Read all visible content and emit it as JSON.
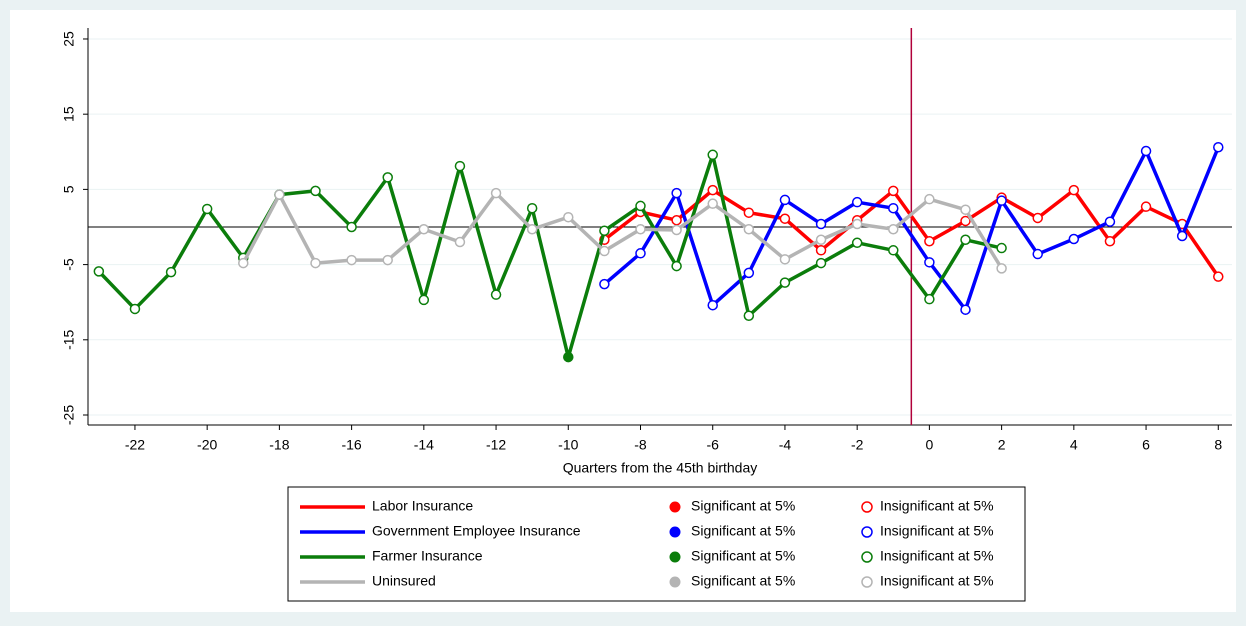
{
  "chart_data": {
    "type": "line",
    "x_label": "Quarters from the 45th birthday",
    "xlim": [
      -23.3,
      8.38
    ],
    "ylim": [
      -26.33,
      26.46
    ],
    "xticks": [
      -22,
      -20,
      -18,
      -16,
      -14,
      -12,
      -10,
      -8,
      -6,
      -4,
      -2,
      0,
      2,
      4,
      6,
      8
    ],
    "yticks": [
      -25,
      -15,
      -5,
      5,
      15,
      25
    ],
    "grid": true,
    "vline": -0.5,
    "hline": 0,
    "vline_color": "#b0003a",
    "legend_position": "bottom",
    "series": [
      {
        "name": "Labor Insurance",
        "color": "#ff0000",
        "legend_significant": "Significant at 5%",
        "legend_insignificant": "Insignificant at 5%",
        "x": [
          -9,
          -8,
          -7,
          -6,
          -5,
          -4,
          -3,
          -2,
          -1,
          0,
          1,
          2,
          3,
          4,
          5,
          6,
          7,
          8
        ],
        "values": [
          -1.7,
          2.0,
          0.9,
          4.9,
          1.9,
          1.1,
          -3.1,
          0.9,
          4.8,
          -1.9,
          0.8,
          3.9,
          1.2,
          4.9,
          -1.9,
          2.7,
          0.4,
          -6.6
        ],
        "significant": [
          false,
          false,
          false,
          false,
          false,
          false,
          false,
          false,
          false,
          false,
          false,
          false,
          false,
          false,
          false,
          false,
          false,
          false
        ]
      },
      {
        "name": "Government Employee Insurance",
        "color": "#0000ff",
        "legend_significant": "Significant at 5%",
        "legend_insignificant": "Insignificant at 5%",
        "x": [
          -9,
          -8,
          -7,
          -6,
          -5,
          -4,
          -3,
          -2,
          -1,
          0,
          1,
          2,
          3,
          4,
          5,
          6,
          7,
          8
        ],
        "values": [
          -7.6,
          -3.5,
          4.5,
          -10.4,
          -6.1,
          3.6,
          0.4,
          3.3,
          2.5,
          -4.7,
          -11.0,
          3.5,
          -3.6,
          -1.6,
          0.7,
          10.1,
          -1.2,
          10.6
        ],
        "significant": [
          false,
          false,
          false,
          false,
          false,
          false,
          false,
          false,
          false,
          false,
          false,
          false,
          false,
          false,
          false,
          false,
          false,
          false
        ]
      },
      {
        "name": "Farmer Insurance",
        "color": "#0b7d0b",
        "legend_significant": "Significant at 5%",
        "legend_insignificant": "Insignificant at 5%",
        "x": [
          -23,
          -22,
          -21,
          -20,
          -19,
          -18,
          -17,
          -16,
          -15,
          -14,
          -13,
          -12,
          -11,
          -10,
          -9,
          -8,
          -7,
          -6,
          -5,
          -4,
          -3,
          -2,
          -1,
          0,
          1,
          2
        ],
        "values": [
          -5.9,
          -10.9,
          -6.0,
          2.4,
          -4.1,
          4.3,
          4.8,
          0,
          6.6,
          -9.7,
          8.1,
          -9.0,
          2.5,
          -17.3,
          -0.5,
          2.8,
          -5.2,
          9.6,
          -11.8,
          -7.4,
          -4.8,
          -2.1,
          -3.1,
          -9.6,
          -1.7,
          -2.8
        ],
        "significant": [
          false,
          false,
          false,
          false,
          false,
          false,
          false,
          false,
          false,
          false,
          false,
          false,
          false,
          true,
          false,
          false,
          false,
          false,
          false,
          false,
          false,
          false,
          false,
          false,
          false,
          false
        ]
      },
      {
        "name": "Uninsured",
        "color": "#b4b4b4",
        "legend_significant": "Significant at 5%",
        "legend_insignificant": "Insignificant at 5%",
        "x": [
          -19,
          -18,
          -17,
          -16,
          -15,
          -14,
          -13,
          -12,
          -11,
          -10,
          -9,
          -8,
          -7,
          -6,
          -5,
          -4,
          -3,
          -2,
          -1,
          0,
          1,
          2
        ],
        "values": [
          -4.8,
          4.3,
          -4.8,
          -4.4,
          -4.4,
          -0.3,
          -2.0,
          4.5,
          -0.3,
          1.3,
          -3.2,
          -0.3,
          -0.4,
          3.1,
          -0.3,
          -4.3,
          -1.7,
          0.4,
          -0.3,
          3.7,
          2.3,
          -5.5
        ],
        "significant": [
          false,
          false,
          false,
          false,
          false,
          false,
          false,
          false,
          false,
          false,
          false,
          false,
          false,
          false,
          false,
          false,
          false,
          false,
          false,
          false,
          false,
          false
        ]
      }
    ]
  }
}
